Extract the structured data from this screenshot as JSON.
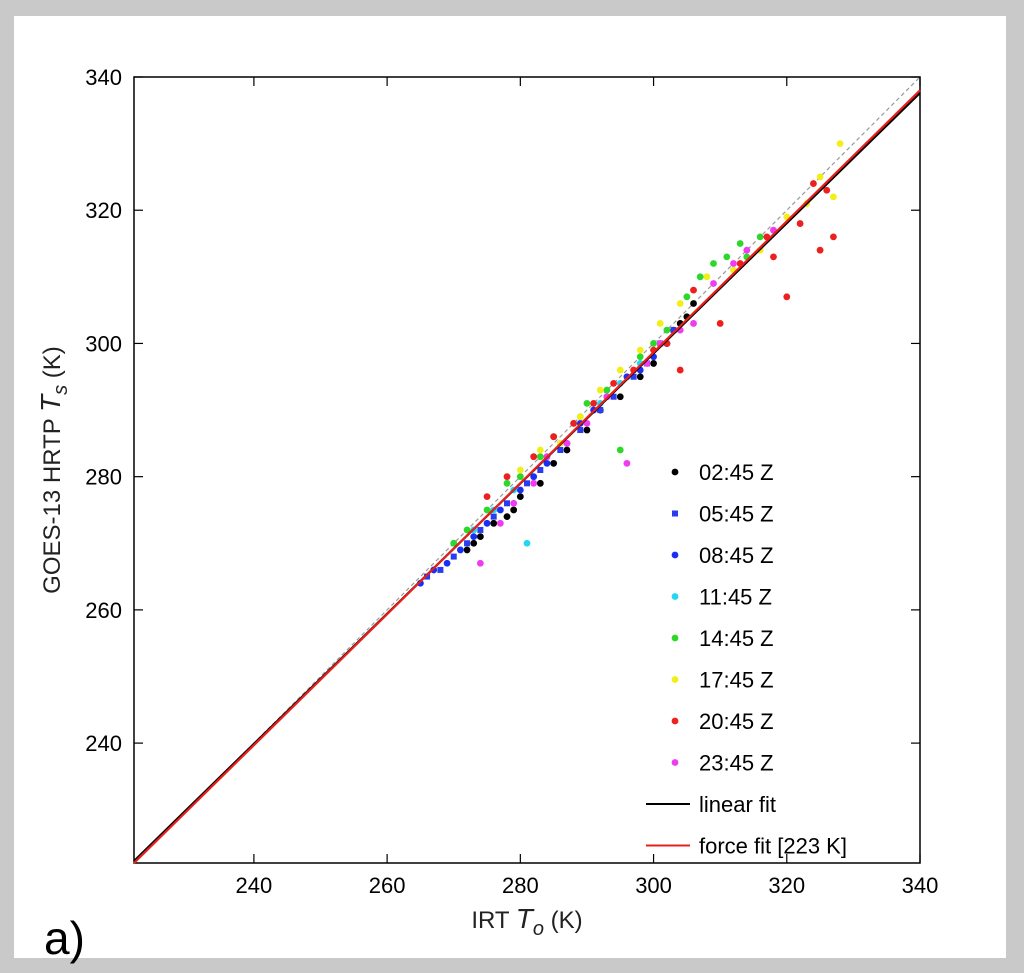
{
  "panel_label": "a)",
  "chart_data": {
    "type": "scatter",
    "xlabel": {
      "prefix": "IRT ",
      "symbol": "T",
      "subscript": "o",
      "unit": " (K)"
    },
    "ylabel": {
      "prefix": "GOES-13 HRTP ",
      "symbol": "T",
      "subscript": "s",
      "unit": " (K)"
    },
    "xlim": [
      222,
      340
    ],
    "ylim": [
      222,
      340
    ],
    "xticks": [
      240,
      260,
      280,
      300,
      320,
      340
    ],
    "yticks": [
      240,
      260,
      280,
      300,
      320,
      340
    ],
    "grid": false,
    "legend_position": "bottom-right",
    "reference_line": {
      "style": "dashed",
      "color": "#999999",
      "x": [
        222,
        340
      ],
      "y": [
        222,
        340
      ]
    },
    "fits": [
      {
        "name": "linear fit",
        "color": "#000000",
        "x": [
          222,
          340
        ],
        "y": [
          222.3,
          337.6
        ]
      },
      {
        "name": "force fit [223 K]",
        "color": "#e8201c",
        "x": [
          222,
          340
        ],
        "y": [
          222.0,
          338.0
        ]
      }
    ],
    "series": [
      {
        "name": "02:45 Z",
        "color": "#000000",
        "marker": "circle",
        "x": [
          272,
          273,
          274,
          276,
          278,
          279,
          280,
          283,
          285,
          287,
          290,
          292,
          295,
          298,
          300,
          302,
          303,
          304,
          305,
          306
        ],
        "y": [
          269,
          270,
          271,
          273,
          274,
          275,
          277,
          279,
          282,
          284,
          287,
          290,
          292,
          295,
          297,
          300,
          302,
          303,
          304,
          306
        ]
      },
      {
        "name": "05:45 Z",
        "color": "#2a3cf0",
        "marker": "square",
        "x": [
          266,
          268,
          270,
          272,
          274,
          276,
          278,
          281,
          283,
          286,
          289,
          292,
          294,
          297,
          299,
          301,
          303
        ],
        "y": [
          265,
          266,
          268,
          270,
          272,
          274,
          276,
          279,
          281,
          284,
          287,
          290,
          292,
          295,
          297,
          300,
          302
        ]
      },
      {
        "name": "08:45 Z",
        "color": "#1a2ff5",
        "marker": "circle",
        "x": [
          265,
          267,
          269,
          271,
          273,
          275,
          277,
          280,
          282,
          284,
          287,
          289,
          291,
          293,
          296,
          298,
          300,
          302
        ],
        "y": [
          264,
          266,
          267,
          269,
          271,
          273,
          275,
          278,
          280,
          282,
          285,
          288,
          290,
          292,
          295,
          296,
          298,
          300
        ]
      },
      {
        "name": "11:45 Z",
        "color": "#22d8f0",
        "marker": "circle",
        "x": [
          270,
          273,
          276,
          279,
          281,
          284,
          286,
          289,
          292,
          295,
          298
        ],
        "y": [
          270,
          272,
          275,
          278,
          270,
          283,
          285,
          289,
          291,
          294,
          297
        ]
      },
      {
        "name": "14:45 Z",
        "color": "#2ed82a",
        "marker": "circle",
        "x": [
          270,
          272,
          275,
          278,
          280,
          283,
          285,
          288,
          290,
          293,
          295,
          298,
          300,
          302,
          305,
          307,
          309,
          311,
          313,
          314,
          316
        ],
        "y": [
          270,
          272,
          275,
          279,
          280,
          283,
          286,
          288,
          291,
          293,
          284,
          298,
          300,
          302,
          307,
          310,
          312,
          313,
          315,
          313,
          316
        ]
      },
      {
        "name": "17:45 Z",
        "color": "#f2ef18",
        "marker": "circle",
        "x": [
          280,
          283,
          286,
          289,
          292,
          295,
          298,
          301,
          304,
          308,
          312,
          316,
          320,
          323,
          325,
          327,
          328
        ],
        "y": [
          281,
          284,
          285,
          289,
          293,
          296,
          299,
          303,
          306,
          310,
          311,
          314,
          319,
          321,
          325,
          322,
          330
        ]
      },
      {
        "name": "20:45 Z",
        "color": "#ee1f1f",
        "marker": "circle",
        "x": [
          275,
          278,
          282,
          285,
          288,
          291,
          294,
          297,
          300,
          302,
          304,
          306,
          310,
          313,
          317,
          318,
          320,
          322,
          324,
          325,
          326,
          327
        ],
        "y": [
          277,
          280,
          283,
          286,
          288,
          291,
          294,
          296,
          299,
          300,
          296,
          308,
          303,
          312,
          316,
          313,
          307,
          318,
          324,
          314,
          323,
          316
        ]
      },
      {
        "name": "23:45 Z",
        "color": "#f03cf0",
        "marker": "circle",
        "x": [
          274,
          277,
          279,
          282,
          284,
          287,
          290,
          293,
          296,
          299,
          301,
          304,
          306,
          309,
          312,
          314,
          318
        ],
        "y": [
          267,
          273,
          276,
          279,
          283,
          285,
          288,
          292,
          282,
          297,
          300,
          302,
          303,
          309,
          312,
          314,
          317
        ]
      }
    ]
  }
}
